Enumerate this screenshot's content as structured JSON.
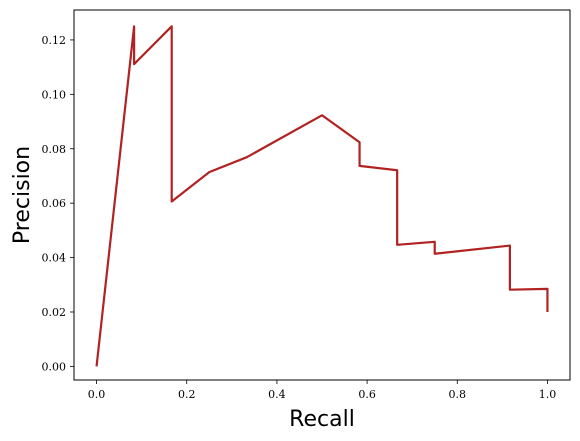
{
  "chart_data": {
    "type": "line",
    "title": "",
    "xlabel": "Recall",
    "ylabel": "Precision",
    "xlim": [
      -0.05,
      1.05
    ],
    "ylim": [
      -0.005,
      0.131
    ],
    "xticks": [
      0.0,
      0.2,
      0.4,
      0.6,
      0.8,
      1.0
    ],
    "xtick_labels": [
      "0.0",
      "0.2",
      "0.4",
      "0.6",
      "0.8",
      "1.0"
    ],
    "yticks": [
      0.0,
      0.02,
      0.04,
      0.06,
      0.08,
      0.1,
      0.12
    ],
    "ytick_labels": [
      "0.00",
      "0.02",
      "0.04",
      "0.06",
      "0.08",
      "0.10",
      "0.12"
    ],
    "grid": false,
    "series": [
      {
        "color": "#b22222",
        "x": [
          0.0,
          0.0833,
          0.0833,
          0.1667,
          0.1667,
          0.25,
          0.3333,
          0.5,
          0.5833,
          0.5833,
          0.6667,
          0.6667,
          0.75,
          0.75,
          0.9167,
          0.9167,
          1.0,
          1.0
        ],
        "y": [
          0.0,
          0.125,
          0.1111,
          0.125,
          0.0606,
          0.0714,
          0.0769,
          0.0923,
          0.0824,
          0.0737,
          0.0721,
          0.0447,
          0.0458,
          0.0414,
          0.0444,
          0.0282,
          0.0285,
          0.02
        ]
      }
    ]
  }
}
